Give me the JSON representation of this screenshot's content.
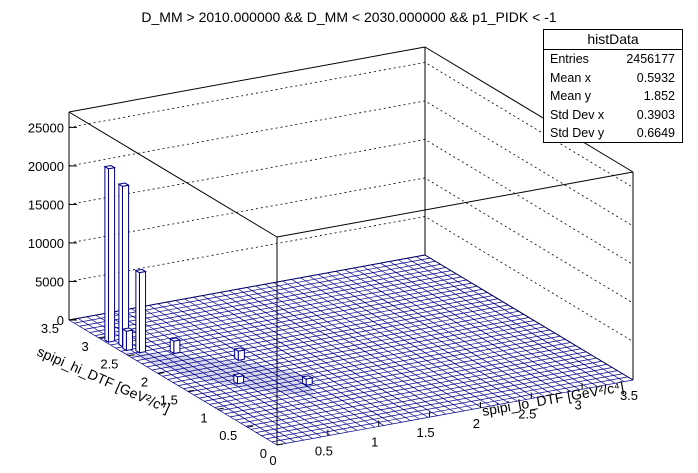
{
  "title": "D_MM > 2010.000000 && D_MM < 2030.000000 && p1_PIDK < -1",
  "stats": {
    "name": "histData",
    "rows": [
      {
        "label": "Entries",
        "value": "2456177"
      },
      {
        "label": "Mean x",
        "value": "0.5932"
      },
      {
        "label": "Mean y",
        "value": "1.852"
      },
      {
        "label": "Std Dev x",
        "value": "0.3903"
      },
      {
        "label": "Std Dev y",
        "value": "0.6649"
      }
    ]
  },
  "colors": {
    "line": "#00008b",
    "axes": "#000000",
    "grid": "#000000"
  },
  "chart_data": {
    "type": "lego",
    "title": "D_MM > 2010.000000 && D_MM < 2030.000000 && p1_PIDK < -1",
    "xlabel": "spipi_lo_DTF [GeV²/c⁴]",
    "ylabel": "spipi_hi_DTF [GeV²/c⁴]",
    "xlim": [
      0,
      3.5
    ],
    "ylim": [
      0,
      3.5
    ],
    "zlim": [
      0,
      27000
    ],
    "x_ticks": [
      "0",
      "0.5",
      "1",
      "1.5",
      "2",
      "2.5",
      "3",
      "3.5"
    ],
    "y_ticks": [
      "0",
      "0.5",
      "1",
      "1.5",
      "2",
      "2.5",
      "3",
      "3.5"
    ],
    "z_ticks": [
      "0",
      "5000",
      "10000",
      "15000",
      "20000",
      "25000"
    ],
    "grid": true,
    "features": [
      {
        "x": 0.05,
        "y": 2.9,
        "z": 22500
      },
      {
        "x": 0.1,
        "y": 2.75,
        "z": 20800
      },
      {
        "x": 0.15,
        "y": 2.55,
        "z": 10400
      },
      {
        "x": 0.08,
        "y": 2.65,
        "z": 2500
      },
      {
        "x": 0.4,
        "y": 2.4,
        "z": 1600
      },
      {
        "x": 0.8,
        "y": 2.0,
        "z": 1200
      },
      {
        "x": 0.5,
        "y": 1.5,
        "z": 900
      },
      {
        "x": 1.0,
        "y": 1.2,
        "z": 800
      }
    ]
  }
}
